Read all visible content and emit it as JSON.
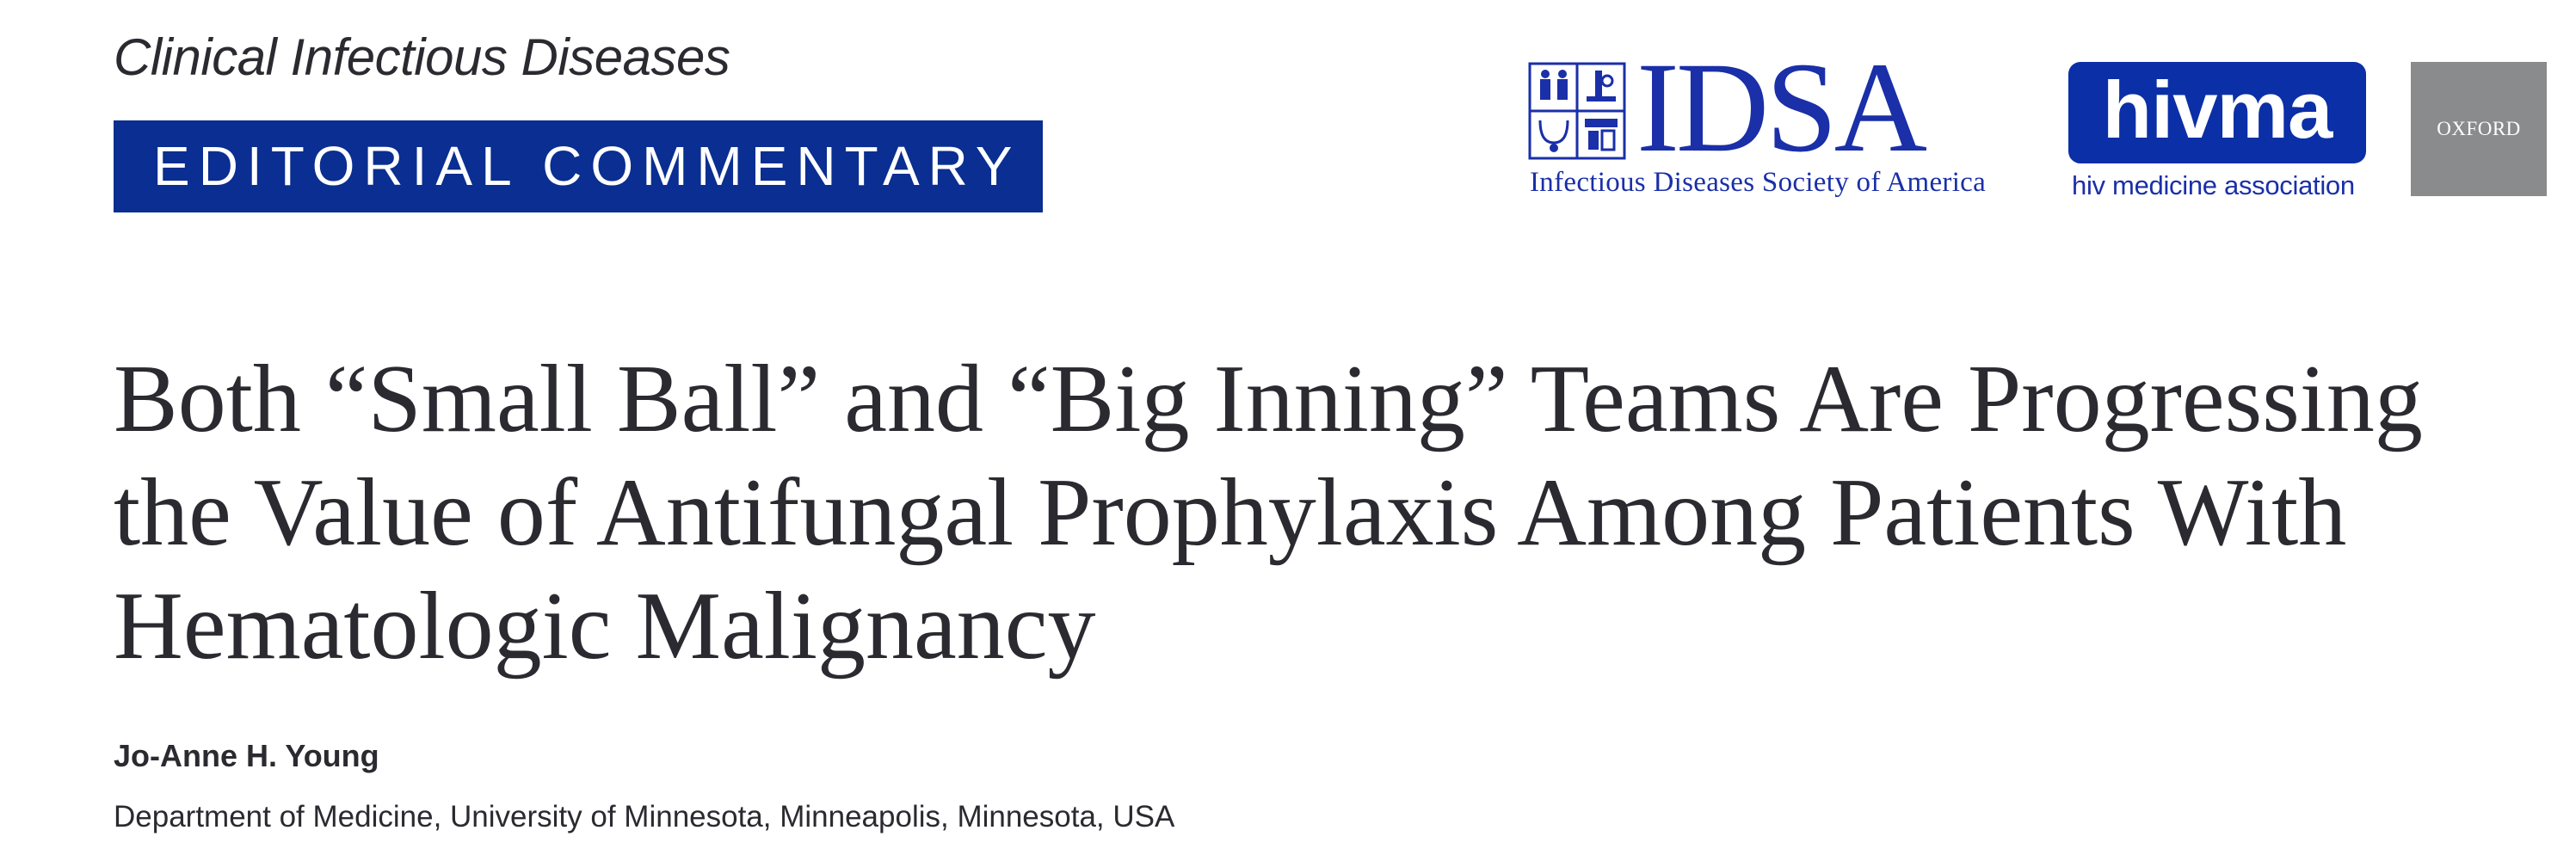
{
  "header": {
    "journal_name": "Clinical Infectious Diseases",
    "section_banner": "EDITORIAL COMMENTARY"
  },
  "logos": {
    "idsa": {
      "wordmark": "IDSA",
      "tagline": "Infectious Diseases Society of America",
      "icon": "idsa-emblem-icon",
      "color": "#1a2fa8"
    },
    "hivma": {
      "wordmark": "hivma",
      "tagline": "hiv medicine association",
      "color": "#0b2fa6"
    },
    "oxford": {
      "wordmark": "OXFORD",
      "color": "#8a8b8d"
    }
  },
  "article": {
    "title": "Both “Small Ball” and “Big Inning” Teams Are Progressing the Value of Antifungal Prophylaxis Among Patients With Hematologic Malignancy",
    "author": "Jo-Anne H. Young",
    "affiliation": "Department of Medicine, University of Minnesota, Minneapolis, Minnesota, USA"
  },
  "colors": {
    "banner": "#0a2e91",
    "text": "#2a2a30"
  }
}
